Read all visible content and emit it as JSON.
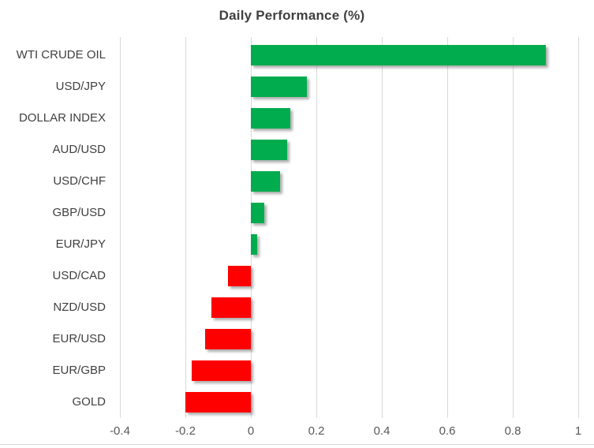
{
  "chart_data": {
    "type": "bar",
    "orientation": "horizontal",
    "title": "Daily Performance (%)",
    "categories": [
      "WTI CRUDE OIL",
      "USD/JPY",
      "DOLLAR INDEX",
      "AUD/USD",
      "USD/CHF",
      "GBP/USD",
      "EUR/JPY",
      "USD/CAD",
      "NZD/USD",
      "EUR/USD",
      "EUR/GBP",
      "GOLD"
    ],
    "values": [
      0.9,
      0.17,
      0.12,
      0.11,
      0.09,
      0.04,
      0.02,
      -0.07,
      -0.12,
      -0.14,
      -0.18,
      -0.2
    ],
    "xlabel": "",
    "ylabel": "",
    "xlim": [
      -0.4,
      1.0
    ],
    "xticks": [
      -0.4,
      -0.2,
      0,
      0.2,
      0.4,
      0.6,
      0.8,
      1
    ],
    "xtick_labels": [
      "-0.4",
      "-0.2",
      "0",
      "0.2",
      "0.4",
      "0.6",
      "0.8",
      "1"
    ],
    "grid": "vertical",
    "legend": "none",
    "colors": {
      "positive": "#00AC4E",
      "negative": "#FF0000",
      "gridline": "#D9D9D9",
      "tick_text": "#595959",
      "category_text": "#404040",
      "title_text": "#3F3F3F"
    }
  }
}
